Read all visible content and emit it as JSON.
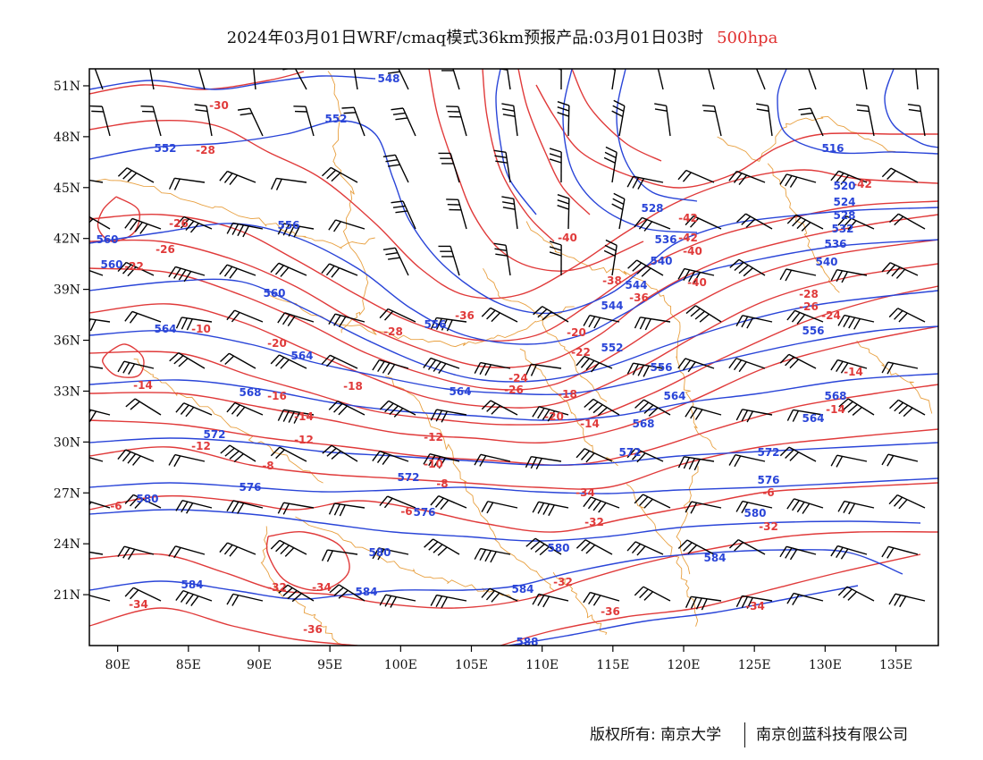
{
  "title": {
    "main": "2024年03月01日WRF/cmaq模式36km预报产品:03月01日03时",
    "level": "500hpa",
    "level_color": "#e03030"
  },
  "axes": {
    "lon_labels": [
      "80E",
      "85E",
      "90E",
      "95E",
      "100E",
      "105E",
      "110E",
      "115E",
      "120E",
      "125E",
      "130E",
      "135E"
    ],
    "lon_values": [
      80,
      85,
      90,
      95,
      100,
      105,
      110,
      115,
      120,
      125,
      130,
      135
    ],
    "lat_labels": [
      "51N",
      "48N",
      "45N",
      "42N",
      "39N",
      "36N",
      "33N",
      "30N",
      "27N",
      "24N",
      "21N"
    ],
    "lat_values": [
      51,
      48,
      45,
      42,
      39,
      36,
      33,
      30,
      27,
      24,
      21
    ],
    "lon_range": [
      78,
      138
    ],
    "lat_range": [
      18,
      52
    ]
  },
  "colors": {
    "temperature": "#e03a3a",
    "height": "#2a45d8",
    "boundary": "#e8a040",
    "wind": "#000000"
  },
  "temperature_labels": [
    "-30",
    "-28",
    "-26",
    "-24",
    "-22",
    "-20",
    "-18",
    "-16",
    "-14",
    "-12",
    "-10",
    "-8",
    "-6",
    "-32",
    "-34",
    "-36",
    "-38",
    "-40",
    "-42"
  ],
  "height_labels": [
    "548",
    "552",
    "556",
    "560",
    "564",
    "568",
    "572",
    "576",
    "580",
    "584",
    "588",
    "516",
    "520",
    "524",
    "528",
    "532",
    "536",
    "540",
    "544"
  ],
  "footer": {
    "left": "版权所有: 南京大学",
    "right": "南京创蓝科技有限公司"
  }
}
